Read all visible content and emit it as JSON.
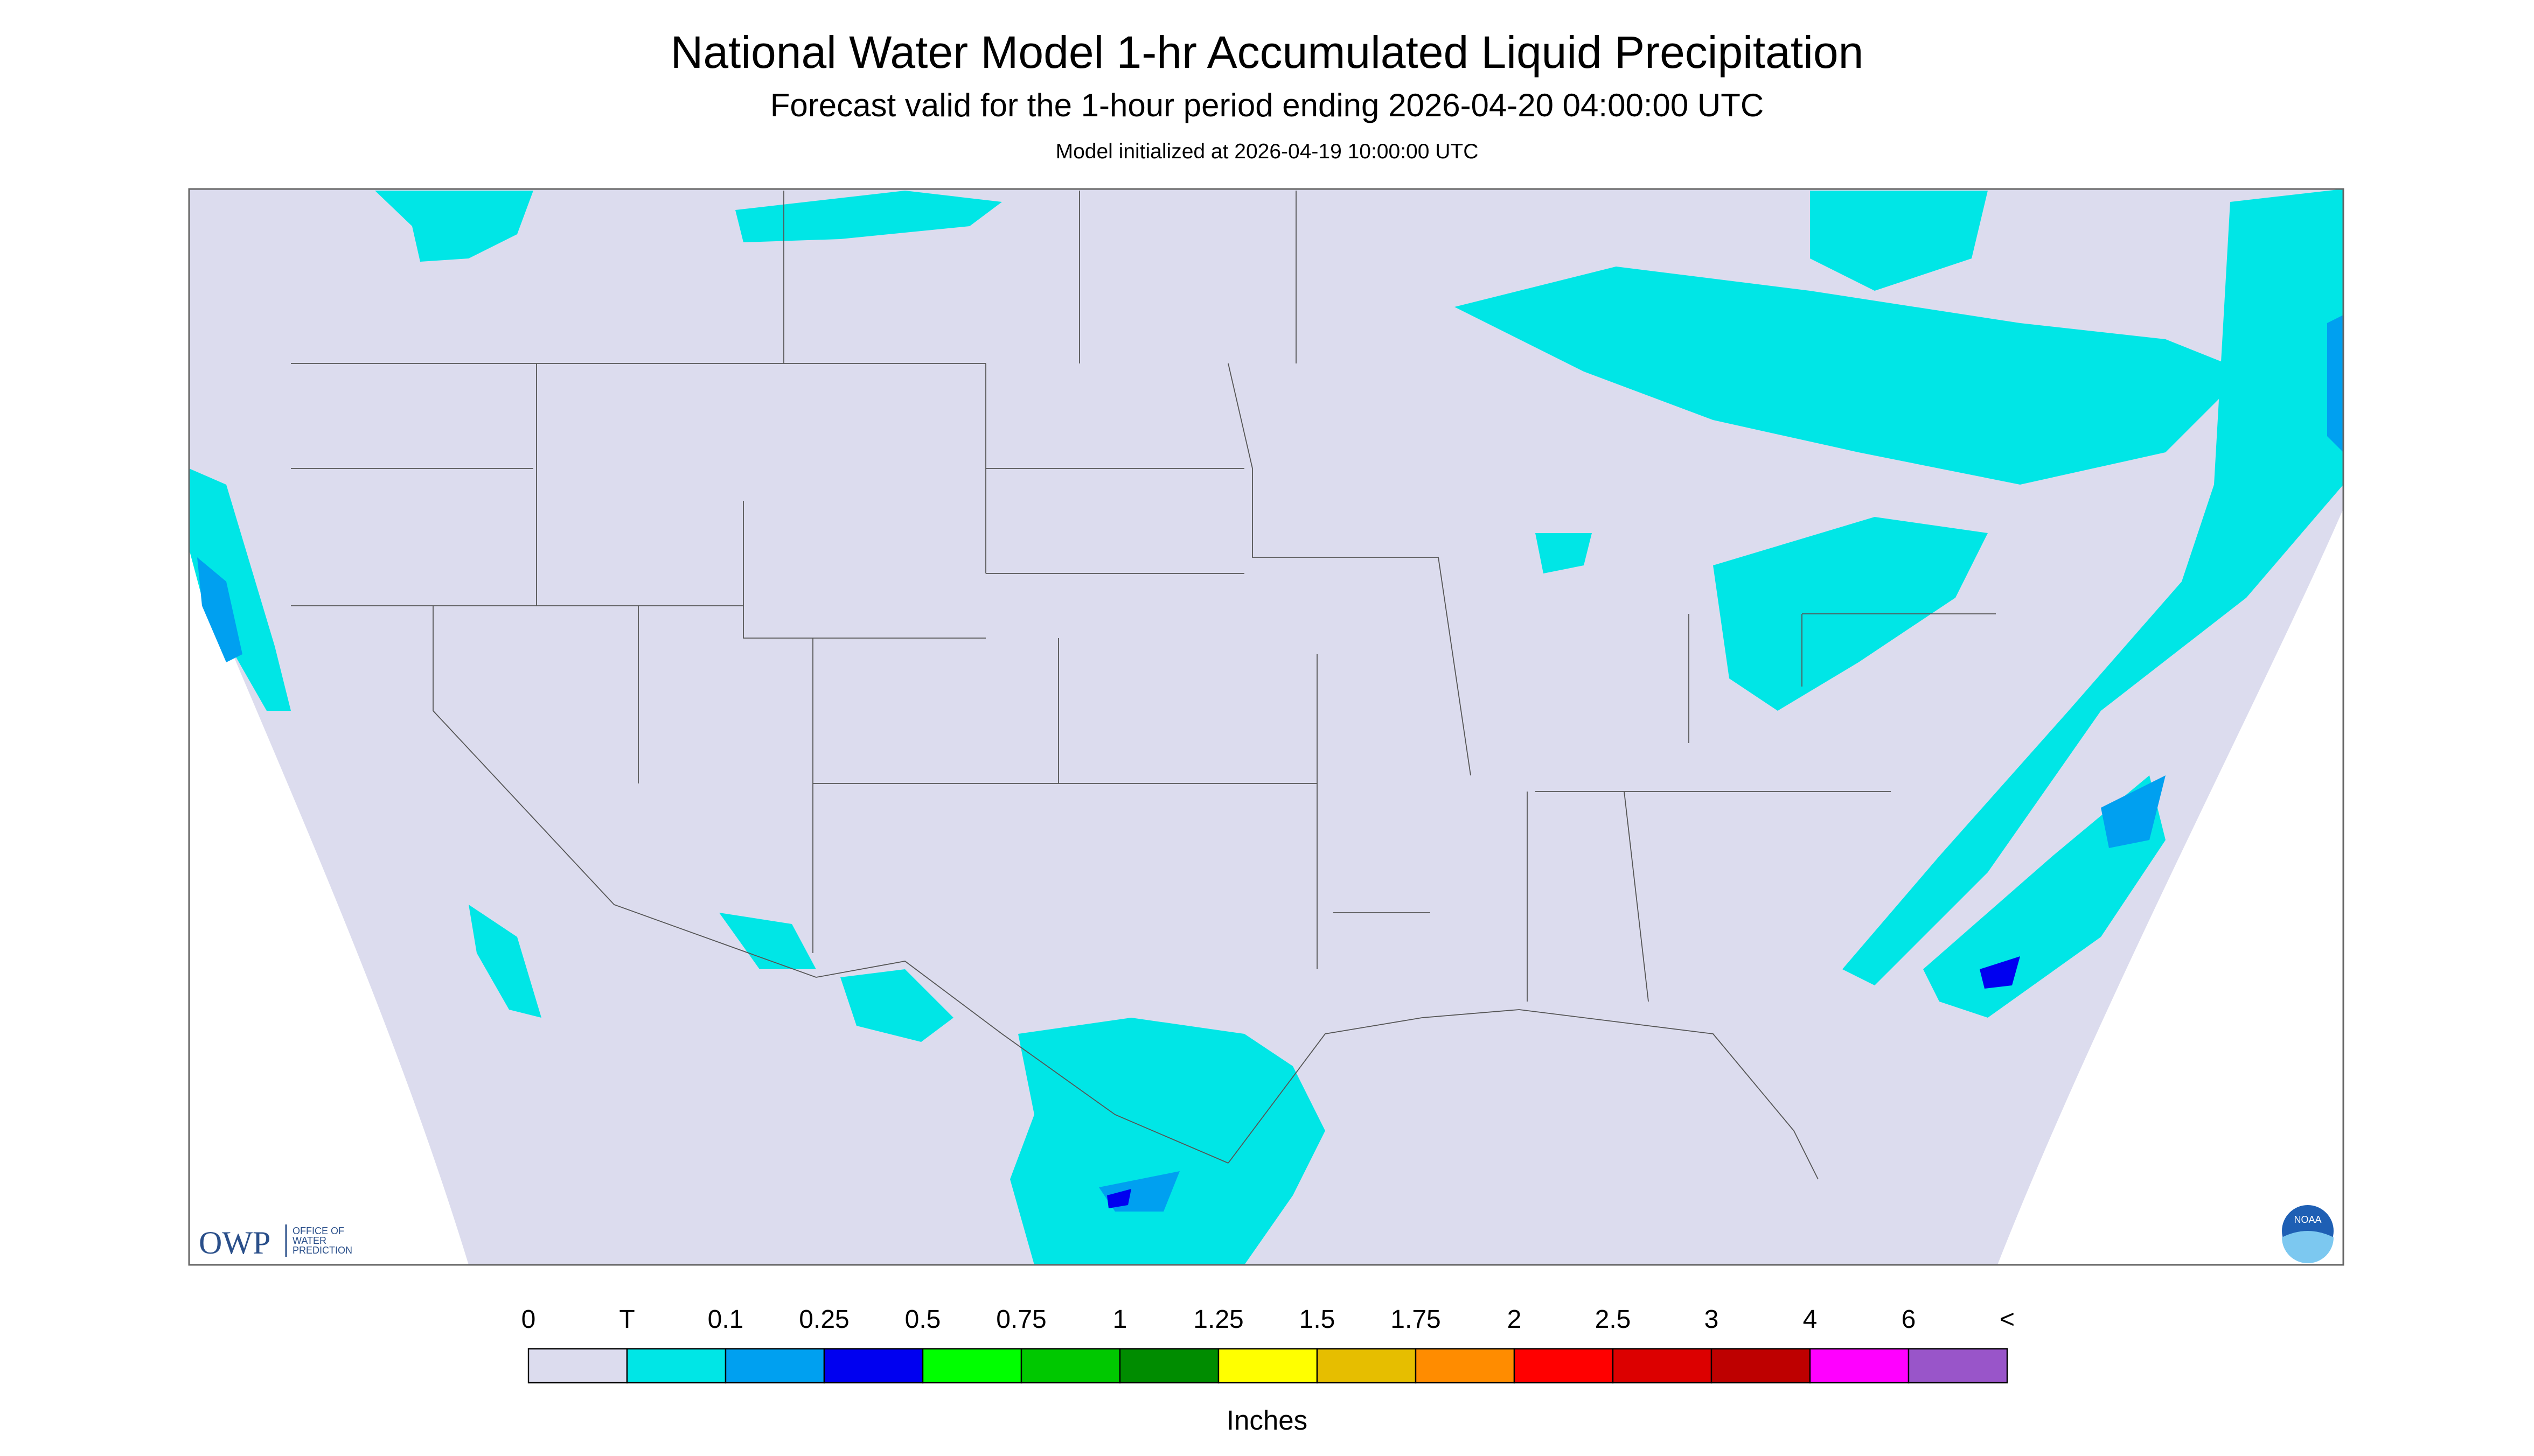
{
  "header": {
    "title": "National Water Model 1-hr Accumulated Liquid Precipitation",
    "subtitle": "Forecast valid for the 1-hour period ending 2026-04-20 04:00:00 UTC",
    "note": "Model initialized at 2026-04-19 10:00:00 UTC"
  },
  "logo": {
    "short": "OWP",
    "long": [
      "OFFICE OF",
      "WATER",
      "PREDICTION"
    ],
    "agency": "NOAA"
  },
  "legend": {
    "labels": [
      "0",
      "T",
      "0.1",
      "0.25",
      "0.5",
      "0.75",
      "1",
      "1.25",
      "1.5",
      "1.75",
      "2",
      "2.5",
      "3",
      "4",
      "6",
      "<"
    ],
    "colors": [
      "#dcdcee",
      "#00e6e6",
      "#00a0f0",
      "#0000f0",
      "#00ff00",
      "#00c800",
      "#008c00",
      "#ffff00",
      "#e6be00",
      "#ff8c00",
      "#ff0000",
      "#dc0000",
      "#be0000",
      "#ff00ff",
      "#9955c9"
    ],
    "unit": "Inches"
  }
}
